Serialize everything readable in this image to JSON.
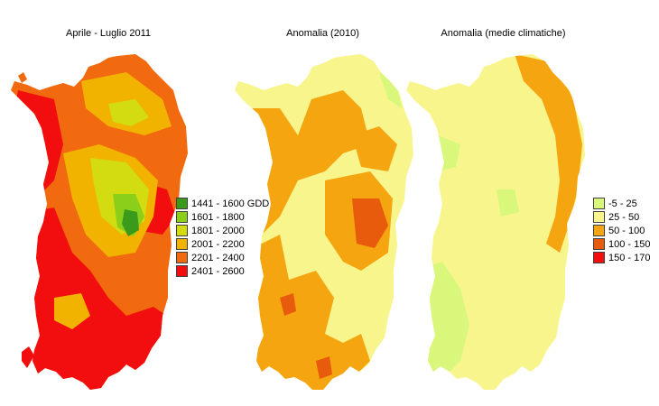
{
  "panels": [
    {
      "title": "Aprile - Luglio 2011",
      "legend": [
        {
          "label": "1441 - 1600 GDD",
          "color": "#3a9a1c"
        },
        {
          "label": "1601 - 1800",
          "color": "#8ccf1a"
        },
        {
          "label": "1801 - 2000",
          "color": "#d2dc10"
        },
        {
          "label": "2001 - 2200",
          "color": "#f2b200"
        },
        {
          "label": "2201 - 2400",
          "color": "#f26a0f"
        },
        {
          "label": "2401 - 2600",
          "color": "#f20e0e"
        }
      ]
    },
    {
      "title": "Anomalia (2010)"
    },
    {
      "title": "Anomalia (medie climatiche)",
      "legend": [
        {
          "label": "-5 - 25",
          "color": "#d9f77a"
        },
        {
          "label": "25 - 50",
          "color": "#f7f58c"
        },
        {
          "label": "50 - 100",
          "color": "#f5a50f"
        },
        {
          "label": "100 - 150",
          "color": "#e85a0c"
        },
        {
          "label": "150 - 170",
          "color": "#f20e0e"
        }
      ]
    }
  ]
}
